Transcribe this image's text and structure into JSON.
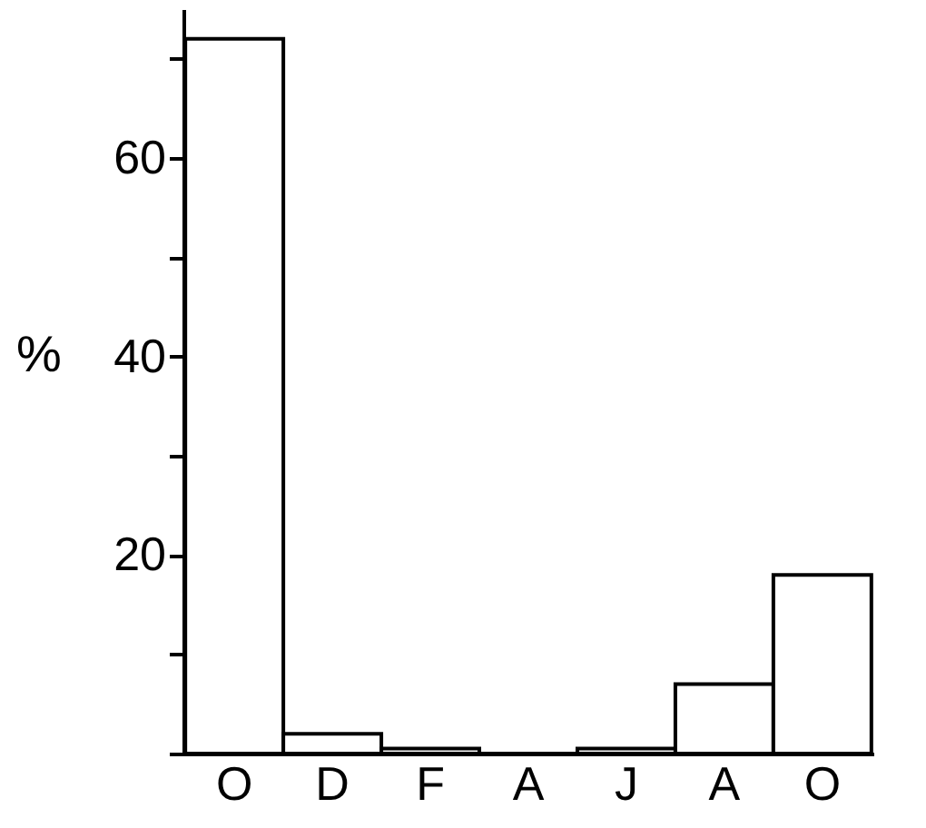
{
  "chart_data": {
    "type": "bar",
    "ylabel": "%",
    "categories": [
      "O",
      "D",
      "F",
      "A",
      "J",
      "A",
      "O"
    ],
    "values": [
      72,
      2,
      0.5,
      0,
      0.5,
      7,
      18
    ],
    "color": "#ffffff",
    "ylim": [
      0,
      75
    ],
    "yticks": [
      {
        "value": 0,
        "label": null
      },
      {
        "value": 10,
        "label": null
      },
      20,
      {
        "value": 30,
        "label": null
      },
      40,
      {
        "value": 50,
        "label": null
      },
      60,
      {
        "value": 70,
        "label": null
      }
    ],
    "grid": false
  }
}
